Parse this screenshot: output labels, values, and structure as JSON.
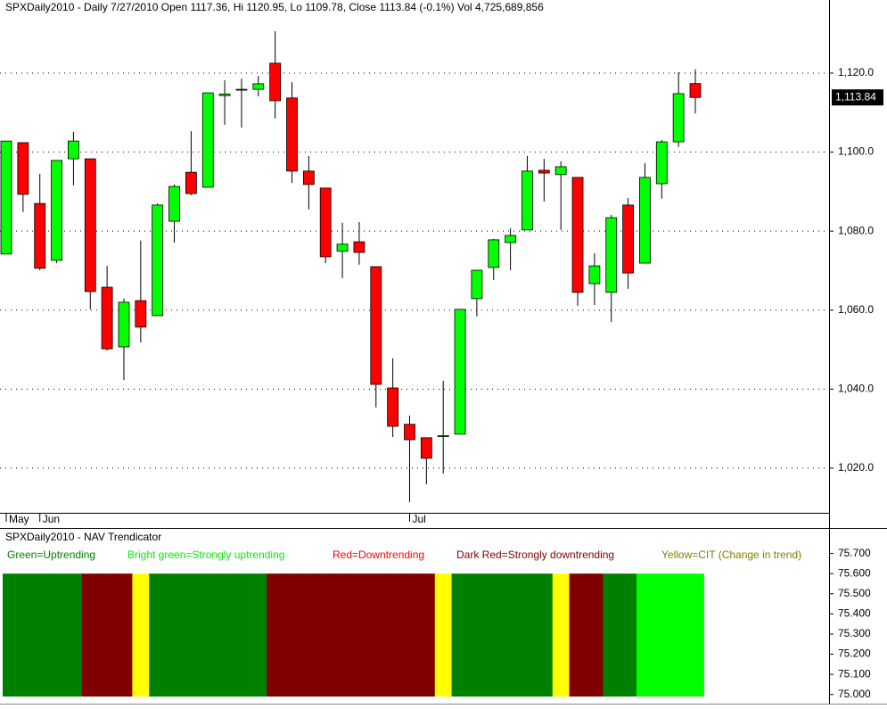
{
  "chart_data": [
    {
      "type": "candlestick",
      "title": "SPXDaily2010 - Daily 7/27/2010 Open 1117.36, Hi 1120.95, Lo 1109.78, Close 1113.84 (-0.1%) Vol 4,725,689,856",
      "last_price_label": "1,113.84",
      "categories": [
        "May",
        null,
        "Jun",
        null,
        null,
        null,
        null,
        null,
        null,
        null,
        null,
        null,
        null,
        null,
        null,
        null,
        null,
        null,
        null,
        null,
        null,
        null,
        null,
        null,
        "Jul",
        null,
        null,
        null,
        null,
        null,
        null,
        null,
        null,
        null,
        null,
        null,
        null,
        null,
        null,
        null,
        null,
        null
      ],
      "open": [
        1074.2,
        1102.4,
        1087.0,
        1072.6,
        1098.3,
        1098.3,
        1065.8,
        1050.7,
        1062.4,
        1058.6,
        1082.5,
        1094.9,
        1091.1,
        1114.3,
        1115.7,
        1115.9,
        1122.5,
        1113.7,
        1095.2,
        1090.9,
        1074.9,
        1077.3,
        1071.0,
        1040.3,
        1031.1,
        1027.7,
        1028.0,
        1028.6,
        1062.9,
        1070.8,
        1077.1,
        1080.3,
        1095.4,
        1094.3,
        1093.6,
        1066.7,
        1064.5,
        1086.6,
        1071.9,
        1092.0,
        1102.6,
        1117.36
      ],
      "high": [
        1102.8,
        1102.4,
        1094.5,
        1097.9,
        1105.1,
        1098.3,
        1071.2,
        1062.9,
        1077.6,
        1087.0,
        1091.8,
        1105.3,
        1115.0,
        1118.2,
        1118.6,
        1119.3,
        1130.6,
        1117.7,
        1099.0,
        1090.9,
        1082.1,
        1082.3,
        1071.0,
        1047.8,
        1033.3,
        1027.7,
        1042.1,
        1060.2,
        1070.1,
        1078.0,
        1080.7,
        1099.0,
        1098.3,
        1097.7,
        1093.6,
        1074.4,
        1084.1,
        1088.4,
        1097.2,
        1103.1,
        1120.2,
        1120.95
      ],
      "low": [
        1074.2,
        1084.8,
        1070.1,
        1071.9,
        1091.6,
        1060.2,
        1049.8,
        1042.3,
        1051.8,
        1058.6,
        1077.1,
        1089.1,
        1091.1,
        1106.9,
        1106.2,
        1114.1,
        1108.5,
        1092.2,
        1085.5,
        1071.9,
        1068.1,
        1071.5,
        1035.4,
        1027.9,
        1011.4,
        1015.9,
        1018.6,
        1028.6,
        1058.4,
        1067.6,
        1070.1,
        1080.3,
        1087.5,
        1080.3,
        1061.1,
        1061.3,
        1057.0,
        1065.4,
        1071.9,
        1088.2,
        1101.3,
        1109.78
      ],
      "close": [
        1102.8,
        1089.3,
        1070.6,
        1097.9,
        1102.8,
        1064.7,
        1050.2,
        1062.0,
        1055.7,
        1086.6,
        1091.3,
        1089.5,
        1115.0,
        1114.7,
        1115.9,
        1117.3,
        1113.0,
        1095.2,
        1091.8,
        1073.5,
        1076.7,
        1074.6,
        1041.2,
        1030.6,
        1027.2,
        1022.5,
        1028.2,
        1060.2,
        1070.1,
        1077.8,
        1078.9,
        1095.2,
        1094.7,
        1096.3,
        1064.5,
        1071.2,
        1083.4,
        1069.4,
        1093.6,
        1102.6,
        1114.8,
        1113.84
      ],
      "up_color": "#00ff00",
      "down_color": "#ff0000",
      "ylim": [
        1008.7,
        1138.5
      ],
      "yticks": [
        {
          "value": 1020,
          "label": "1,020.0"
        },
        {
          "value": 1040,
          "label": "1,040.0"
        },
        {
          "value": 1060,
          "label": "1,060.0"
        },
        {
          "value": 1080,
          "label": "1,080.0"
        },
        {
          "value": 1100,
          "label": "1,100.0"
        },
        {
          "value": 1120,
          "label": "1,120.0"
        }
      ],
      "grid": true
    },
    {
      "type": "bar",
      "title": "SPXDaily2010 - NAV Trendicator",
      "legend": [
        {
          "name": "Green=Uptrending",
          "color": "#008000"
        },
        {
          "name": "Bright green=Strongly uptrending",
          "color": "#00ee00"
        },
        {
          "name": "Red=Downtrending",
          "color": "#ff0000"
        },
        {
          "name": "Dark Red=Strongly downtrending",
          "color": "#800000"
        },
        {
          "name": "Yellow=CIT (Change in trend)",
          "color": "#808000"
        }
      ],
      "values": [
        75.6,
        75.6,
        75.6,
        75.6,
        75.6,
        75.6,
        75.6,
        75.6,
        75.6,
        75.6,
        75.6,
        75.6,
        75.6,
        75.6,
        75.6,
        75.6,
        75.6,
        75.6,
        75.6,
        75.6,
        75.6,
        75.6,
        75.6,
        75.6,
        75.6,
        75.6,
        75.6,
        75.6,
        75.6,
        75.6,
        75.6,
        75.6,
        75.6,
        75.6,
        75.6,
        75.6,
        75.6,
        75.6,
        75.6,
        75.6,
        75.6,
        75.6
      ],
      "colors": [
        "#008000",
        "#008000",
        "#008000",
        "#008000",
        "#008000",
        "#800000",
        "#800000",
        "#800000",
        "#ffff00",
        "#008000",
        "#008000",
        "#008000",
        "#008000",
        "#008000",
        "#008000",
        "#008000",
        "#800000",
        "#800000",
        "#800000",
        "#800000",
        "#800000",
        "#800000",
        "#800000",
        "#800000",
        "#800000",
        "#800000",
        "#ffff00",
        "#008000",
        "#008000",
        "#008000",
        "#008000",
        "#008000",
        "#008000",
        "#ffff00",
        "#800000",
        "#800000",
        "#008000",
        "#008000",
        "#00ff00",
        "#00ff00",
        "#00ff00",
        "#00ff00"
      ],
      "ylim": [
        74.99,
        75.8
      ],
      "yticks": [
        {
          "value": 75.0,
          "label": "75.000"
        },
        {
          "value": 75.1,
          "label": "75.100"
        },
        {
          "value": 75.2,
          "label": "75.200"
        },
        {
          "value": 75.3,
          "label": "75.300"
        },
        {
          "value": 75.4,
          "label": "75.400"
        },
        {
          "value": 75.5,
          "label": "75.500"
        },
        {
          "value": 75.6,
          "label": "75.600"
        },
        {
          "value": 75.7,
          "label": "75.700"
        }
      ]
    }
  ]
}
